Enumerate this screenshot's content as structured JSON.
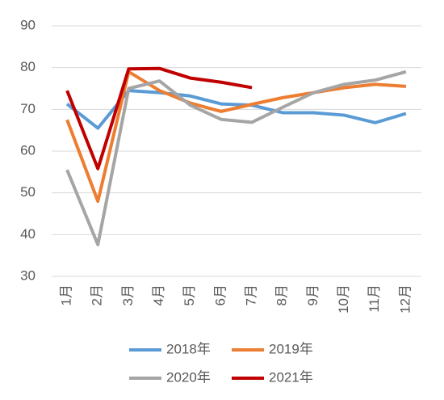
{
  "chart_data": {
    "type": "line",
    "categories": [
      "1月",
      "2月",
      "3月",
      "4月",
      "5月",
      "6月",
      "7月",
      "8月",
      "9月",
      "10月",
      "11月",
      "12月"
    ],
    "series": [
      {
        "name": "2018年",
        "color": "#5b9bd5",
        "values": [
          71.3,
          65.5,
          74.5,
          74,
          73.2,
          71.3,
          71,
          69.2,
          69.2,
          68.6,
          66.8,
          69
        ]
      },
      {
        "name": "2019年",
        "color": "#ed7d31",
        "values": [
          67.5,
          48,
          79,
          74.5,
          71.5,
          69.5,
          71.2,
          72.8,
          74,
          75.2,
          76,
          75.5
        ]
      },
      {
        "name": "2020年",
        "color": "#a5a5a5",
        "values": [
          55.5,
          37.6,
          75,
          76.8,
          71,
          67.6,
          66.9,
          70.5,
          74,
          76,
          77,
          79
        ]
      },
      {
        "name": "2021年",
        "color": "#c00000",
        "values": [
          74.5,
          55.8,
          79.7,
          79.8,
          77.5,
          76.5,
          75.2,
          null,
          null,
          null,
          null,
          null
        ]
      }
    ],
    "ylim": [
      30,
      90
    ],
    "yticks": [
      30,
      40,
      50,
      60,
      70,
      80,
      90
    ],
    "grid": true,
    "legend": "bottom"
  }
}
